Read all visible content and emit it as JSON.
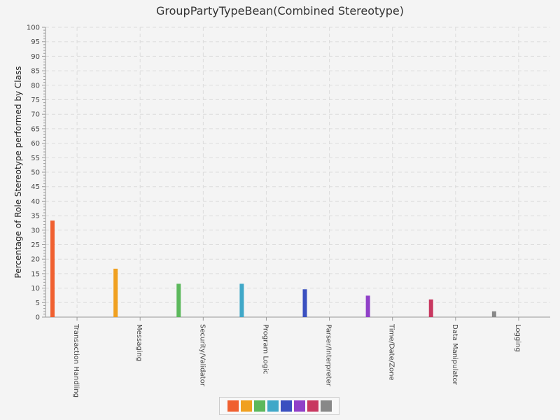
{
  "chart_data": {
    "type": "bar",
    "title": "GroupPartyTypeBean(Combined Stereotype)",
    "ylabel": "Percentage of Role Stereotype performed by Class",
    "xlabel": "",
    "ylim": [
      0,
      100
    ],
    "yticks": [
      0,
      5,
      10,
      15,
      20,
      25,
      30,
      35,
      40,
      45,
      50,
      55,
      60,
      65,
      70,
      75,
      80,
      85,
      90,
      95,
      100
    ],
    "categories": [
      "Transaction Handling",
      "Messaging",
      "Security/Validator",
      "Program Logic",
      "Parser/Interpreter",
      "Time/Date/Zone",
      "Data Manipulator",
      "Logging"
    ],
    "values": [
      33.3,
      16.7,
      11.5,
      11.5,
      9.6,
      7.4,
      6.1,
      2.0
    ],
    "colors": [
      "#f06030",
      "#f0a020",
      "#5cb85c",
      "#40a8c8",
      "#3a50c0",
      "#9040c8",
      "#c83860",
      "#888888"
    ],
    "grid": true,
    "legend": "bottom-center"
  }
}
